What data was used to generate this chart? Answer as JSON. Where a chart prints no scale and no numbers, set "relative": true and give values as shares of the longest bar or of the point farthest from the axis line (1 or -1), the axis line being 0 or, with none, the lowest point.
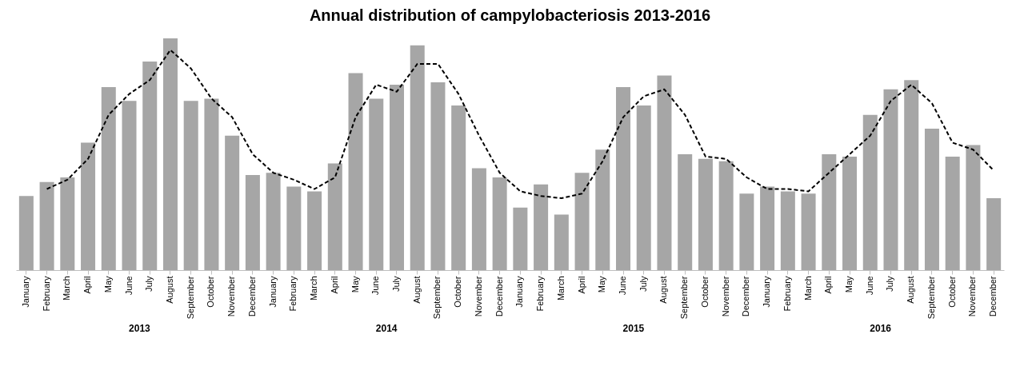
{
  "chart_data": {
    "type": "bar",
    "title": "Annual distribution of campylobacteriosis 2013-2016",
    "relative": true,
    "grid": false,
    "categories": [
      "January",
      "February",
      "March",
      "April",
      "May",
      "June",
      "July",
      "August",
      "September",
      "October",
      "November",
      "December",
      "January",
      "February",
      "March",
      "April",
      "May",
      "June",
      "July",
      "August",
      "September",
      "October",
      "November",
      "December",
      "January",
      "February",
      "March",
      "April",
      "May",
      "June",
      "July",
      "August",
      "September",
      "October",
      "November",
      "December",
      "January",
      "February",
      "March",
      "April",
      "May",
      "June",
      "July",
      "August",
      "September",
      "October",
      "November",
      "December"
    ],
    "series": [
      {
        "color": "#a6a6a6",
        "values": [
          0.32,
          0.38,
          0.4,
          0.55,
          0.79,
          0.73,
          0.9,
          1,
          0.73,
          0.74,
          0.58,
          0.41,
          0.42,
          0.36,
          0.34,
          0.46,
          0.85,
          0.74,
          0.8,
          0.97,
          0.81,
          0.71,
          0.44,
          0.4,
          0.27,
          0.37,
          0.24,
          0.42,
          0.52,
          0.79,
          0.71,
          0.84,
          0.5,
          0.48,
          0.47,
          0.33,
          0.36,
          0.34,
          0.33,
          0.5,
          0.49,
          0.67,
          0.78,
          0.82,
          0.61,
          0.49,
          0.54,
          0.31
        ]
      },
      {
        "type": "line",
        "color": "#000000",
        "line_style": "dashed",
        "marker": "none",
        "values": [
          null,
          0.35,
          0.39,
          0.48,
          0.67,
          0.76,
          0.82,
          0.95,
          0.87,
          0.74,
          0.66,
          0.5,
          0.42,
          0.39,
          0.35,
          0.4,
          0.66,
          0.8,
          0.77,
          0.89,
          0.89,
          0.76,
          0.58,
          0.42,
          0.34,
          0.32,
          0.31,
          0.33,
          0.47,
          0.66,
          0.75,
          0.78,
          0.67,
          0.49,
          0.48,
          0.4,
          0.35,
          0.35,
          0.34,
          0.42,
          0.5,
          0.58,
          0.73,
          0.8,
          0.72,
          0.55,
          0.52,
          0.43
        ]
      }
    ],
    "annotations": [
      "2013",
      "2014",
      "2015",
      "2016"
    ]
  }
}
